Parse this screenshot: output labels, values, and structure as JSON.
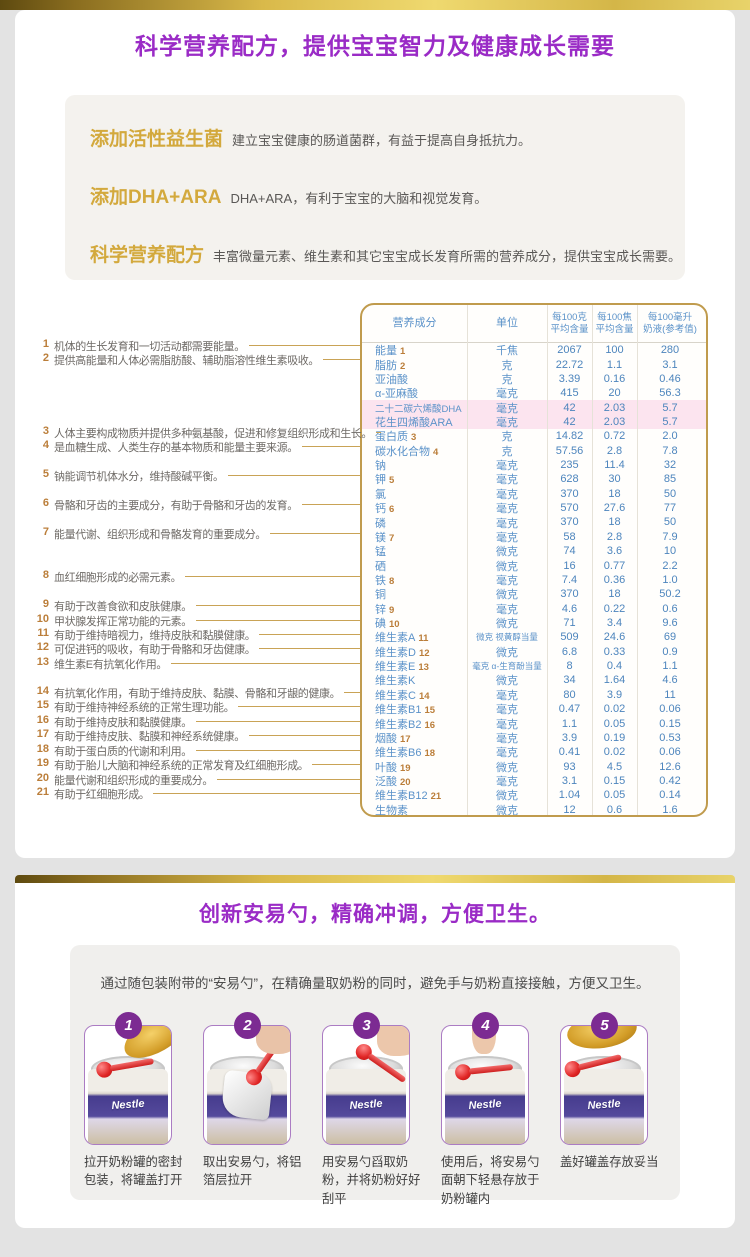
{
  "section1": {
    "title": "科学营养配方，提供宝宝智力及健康成长需要"
  },
  "benefits": [
    {
      "label": "添加活性益生菌",
      "text": "建立宝宝健康的肠道菌群，有益于提高自身抵抗力。"
    },
    {
      "label": "添加DHA+ARA",
      "text": "DHA+ARA，有利于宝宝的大脑和视觉发育。"
    },
    {
      "label": "科学营养配方",
      "text": "丰富微量元素、维生素和其它宝宝成长发育所需的营养成分，提供宝宝成长需要。"
    }
  ],
  "nutrition_table": {
    "headers": [
      "营养成分",
      "单位",
      "每100克\n平均含量",
      "每100焦\n平均含量",
      "每100毫升\n奶液(参考值)"
    ],
    "rows": [
      {
        "name": "能量",
        "ref": "1",
        "unit": "千焦",
        "per_100g": "2067",
        "per_100kj": "100",
        "per_100ml": "280"
      },
      {
        "name": "脂肪",
        "ref": "2",
        "unit": "克",
        "per_100g": "22.72",
        "per_100kj": "1.1",
        "per_100ml": "3.1"
      },
      {
        "name": "亚油酸",
        "ref": "",
        "unit": "克",
        "per_100g": "3.39",
        "per_100kj": "0.16",
        "per_100ml": "0.46"
      },
      {
        "name": "α-亚麻酸",
        "ref": "",
        "unit": "毫克",
        "per_100g": "415",
        "per_100kj": "20",
        "per_100ml": "56.3"
      },
      {
        "name": "二十二碳六烯酸DHA",
        "ref": "",
        "unit": "毫克",
        "per_100g": "42",
        "per_100kj": "2.03",
        "per_100ml": "5.7",
        "highlight": true
      },
      {
        "name": "花生四烯酸ARA",
        "ref": "",
        "unit": "毫克",
        "per_100g": "42",
        "per_100kj": "2.03",
        "per_100ml": "5.7",
        "highlight": true
      },
      {
        "name": "蛋白质",
        "ref": "3",
        "unit": "克",
        "per_100g": "14.82",
        "per_100kj": "0.72",
        "per_100ml": "2.0"
      },
      {
        "name": "碳水化合物",
        "ref": "4",
        "unit": "克",
        "per_100g": "57.56",
        "per_100kj": "2.8",
        "per_100ml": "7.8"
      },
      {
        "name": "钠",
        "ref": "",
        "unit": "毫克",
        "per_100g": "235",
        "per_100kj": "11.4",
        "per_100ml": "32"
      },
      {
        "name": "钾",
        "ref": "5",
        "unit": "毫克",
        "per_100g": "628",
        "per_100kj": "30",
        "per_100ml": "85"
      },
      {
        "name": "氯",
        "ref": "",
        "unit": "毫克",
        "per_100g": "370",
        "per_100kj": "18",
        "per_100ml": "50"
      },
      {
        "name": "钙",
        "ref": "6",
        "unit": "毫克",
        "per_100g": "570",
        "per_100kj": "27.6",
        "per_100ml": "77"
      },
      {
        "name": "磷",
        "ref": "",
        "unit": "毫克",
        "per_100g": "370",
        "per_100kj": "18",
        "per_100ml": "50"
      },
      {
        "name": "镁",
        "ref": "7",
        "unit": "毫克",
        "per_100g": "58",
        "per_100kj": "2.8",
        "per_100ml": "7.9"
      },
      {
        "name": "锰",
        "ref": "",
        "unit": "微克",
        "per_100g": "74",
        "per_100kj": "3.6",
        "per_100ml": "10"
      },
      {
        "name": "硒",
        "ref": "",
        "unit": "微克",
        "per_100g": "16",
        "per_100kj": "0.77",
        "per_100ml": "2.2"
      },
      {
        "name": "铁",
        "ref": "8",
        "unit": "毫克",
        "per_100g": "7.4",
        "per_100kj": "0.36",
        "per_100ml": "1.0"
      },
      {
        "name": "铜",
        "ref": "",
        "unit": "微克",
        "per_100g": "370",
        "per_100kj": "18",
        "per_100ml": "50.2"
      },
      {
        "name": "锌",
        "ref": "9",
        "unit": "毫克",
        "per_100g": "4.6",
        "per_100kj": "0.22",
        "per_100ml": "0.6"
      },
      {
        "name": "碘",
        "ref": "10",
        "unit": "微克",
        "per_100g": "71",
        "per_100kj": "3.4",
        "per_100ml": "9.6"
      },
      {
        "name": "维生素A",
        "ref": "11",
        "unit": "微克 视黄醇当量",
        "per_100g": "509",
        "per_100kj": "24.6",
        "per_100ml": "69"
      },
      {
        "name": "维生素D",
        "ref": "12",
        "unit": "微克",
        "per_100g": "6.8",
        "per_100kj": "0.33",
        "per_100ml": "0.9"
      },
      {
        "name": "维生素E",
        "ref": "13",
        "unit": "毫克 α-生育酚当量",
        "per_100g": "8",
        "per_100kj": "0.4",
        "per_100ml": "1.1"
      },
      {
        "name": "维生素K",
        "ref": "",
        "unit": "微克",
        "per_100g": "34",
        "per_100kj": "1.64",
        "per_100ml": "4.6"
      },
      {
        "name": "维生素C",
        "ref": "14",
        "unit": "毫克",
        "per_100g": "80",
        "per_100kj": "3.9",
        "per_100ml": "11"
      },
      {
        "name": "维生素B1",
        "ref": "15",
        "unit": "毫克",
        "per_100g": "0.47",
        "per_100kj": "0.02",
        "per_100ml": "0.06"
      },
      {
        "name": "维生素B2",
        "ref": "16",
        "unit": "毫克",
        "per_100g": "1.1",
        "per_100kj": "0.05",
        "per_100ml": "0.15"
      },
      {
        "name": "烟酸",
        "ref": "17",
        "unit": "毫克",
        "per_100g": "3.9",
        "per_100kj": "0.19",
        "per_100ml": "0.53"
      },
      {
        "name": "维生素B6",
        "ref": "18",
        "unit": "毫克",
        "per_100g": "0.41",
        "per_100kj": "0.02",
        "per_100ml": "0.06"
      },
      {
        "name": "叶酸",
        "ref": "19",
        "unit": "微克",
        "per_100g": "93",
        "per_100kj": "4.5",
        "per_100ml": "12.6"
      },
      {
        "name": "泛酸",
        "ref": "20",
        "unit": "毫克",
        "per_100g": "3.1",
        "per_100kj": "0.15",
        "per_100ml": "0.42"
      },
      {
        "name": "维生素B12",
        "ref": "21",
        "unit": "微克",
        "per_100g": "1.04",
        "per_100kj": "0.05",
        "per_100ml": "0.14"
      },
      {
        "name": "生物素",
        "ref": "",
        "unit": "微克",
        "per_100g": "12",
        "per_100kj": "0.6",
        "per_100ml": "1.6"
      }
    ]
  },
  "annotations": [
    {
      "num": "1",
      "text": "机体的生长发育和一切活动都需要能量。",
      "row": 0
    },
    {
      "num": "2",
      "text": "提供高能量和人体必需脂肪酸、辅助脂溶性维生素吸收。",
      "row": 1
    },
    {
      "num": "3",
      "text": "人体主要构成物质并提供多种氨基酸，促进和修复组织形成和生长。",
      "row": 6
    },
    {
      "num": "4",
      "text": "是血糖生成、人类生存的基本物质和能量主要来源。",
      "row": 7
    },
    {
      "num": "5",
      "text": "钠能调节机体水分，维持酸碱平衡。",
      "row": 9
    },
    {
      "num": "6",
      "text": "骨骼和牙齿的主要成分，有助于骨骼和牙齿的发育。",
      "row": 11
    },
    {
      "num": "7",
      "text": "能量代谢、组织形成和骨骼发育的重要成分。",
      "row": 13
    },
    {
      "num": "8",
      "text": "血红细胞形成的必需元素。",
      "row": 16
    },
    {
      "num": "9",
      "text": "有助于改善食欲和皮肤健康。",
      "row": 18
    },
    {
      "num": "10",
      "text": "甲状腺发挥正常功能的元素。",
      "row": 19
    },
    {
      "num": "11",
      "text": "有助于维持暗视力，维持皮肤和黏膜健康。",
      "row": 20
    },
    {
      "num": "12",
      "text": "可促进钙的吸收，有助于骨骼和牙齿健康。",
      "row": 21
    },
    {
      "num": "13",
      "text": "维生素E有抗氧化作用。",
      "row": 22
    },
    {
      "num": "14",
      "text": "有抗氧化作用，有助于维持皮肤、黏膜、骨骼和牙龈的健康。",
      "row": 24
    },
    {
      "num": "15",
      "text": "有助于维持神经系统的正常生理功能。",
      "row": 25
    },
    {
      "num": "16",
      "text": "有助于维持皮肤和黏膜健康。",
      "row": 26
    },
    {
      "num": "17",
      "text": "有助于维持皮肤、黏膜和神经系统健康。",
      "row": 27
    },
    {
      "num": "18",
      "text": "有助于蛋白质的代谢和利用。",
      "row": 28
    },
    {
      "num": "19",
      "text": "有助于胎儿大脑和神经系统的正常发育及红细胞形成。",
      "row": 29
    },
    {
      "num": "20",
      "text": "能量代谢和组织形成的重要成分。",
      "row": 30
    },
    {
      "num": "21",
      "text": "有助于红细胞形成。",
      "row": 31
    }
  ],
  "scoop_section": {
    "title": "创新安易勺，精确冲调，方便卫生。",
    "intro": "通过随包装附带的“安易勺”，在精确量取奶粉的同时，避免手与奶粉直接接触，方便又卫生。",
    "can_brand": "Nestle",
    "steps": [
      {
        "num": "1",
        "caption": "拉开奶粉罐的密封包装，将罐盖打开",
        "variant": "open-lid"
      },
      {
        "num": "2",
        "caption": "取出安易勺，将铝箔层拉开",
        "variant": "foil-step"
      },
      {
        "num": "3",
        "caption": "用安易勺舀取奶粉，并将奶粉好好刮平",
        "variant": "scooping"
      },
      {
        "num": "4",
        "caption": "使用后，将安易勺面朝下轻悬存放于奶粉罐内",
        "variant": "insert"
      },
      {
        "num": "5",
        "caption": "盖好罐盖存放妥当",
        "variant": "closed"
      }
    ]
  }
}
